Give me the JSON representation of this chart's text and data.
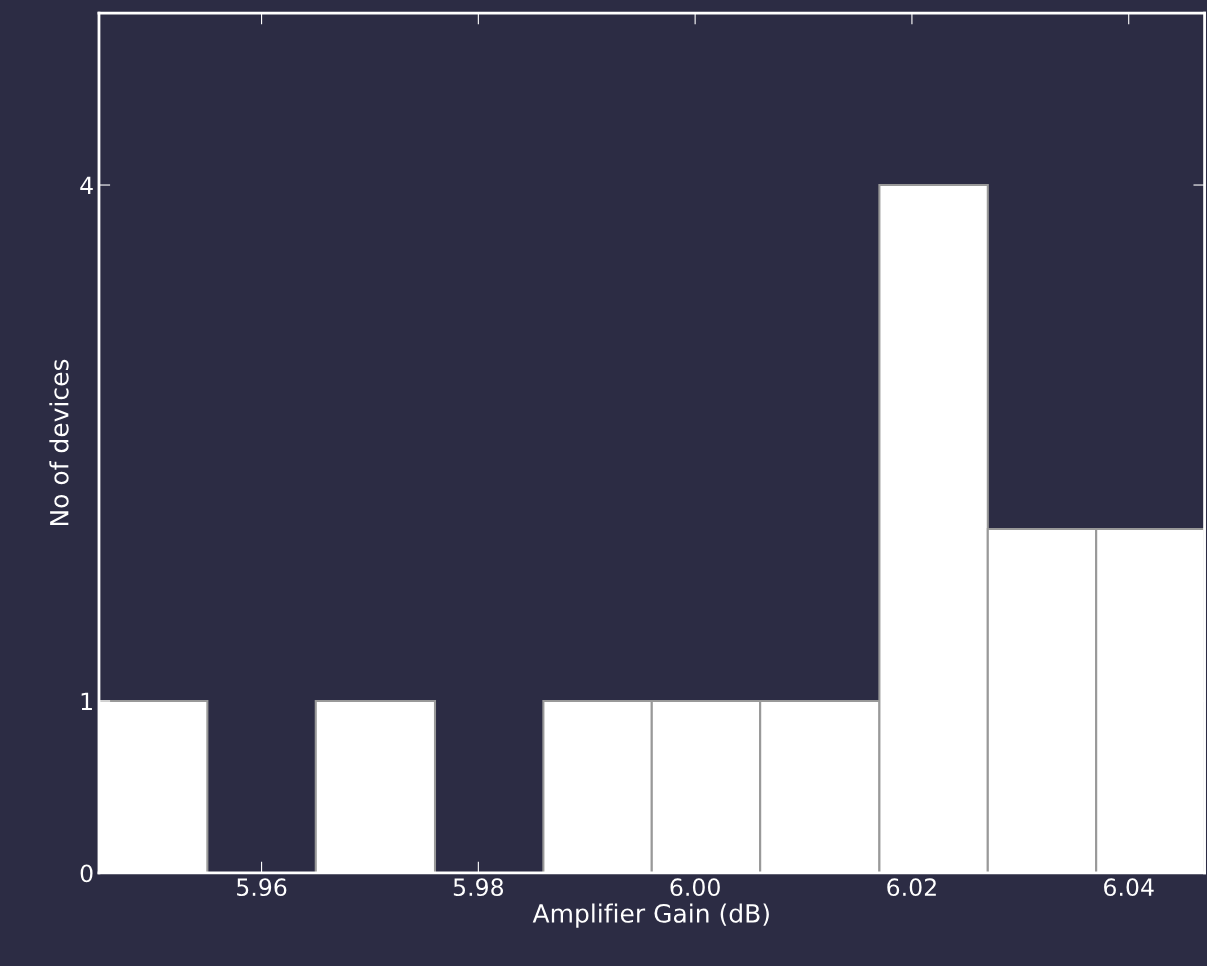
{
  "chart_data": {
    "type": "histogram",
    "xlabel": "Amplifier Gain (dB)",
    "ylabel": "No of devices",
    "bins": [
      5.945,
      5.955,
      5.965,
      5.976,
      5.986,
      5.996,
      6.006,
      6.017,
      6.027,
      6.037,
      6.047
    ],
    "values": [
      1,
      0,
      1,
      0,
      1,
      1,
      1,
      4,
      2,
      2
    ],
    "color": "#ffffff",
    "xlim": [
      5.945,
      6.047
    ],
    "ylim": [
      0,
      5
    ],
    "xticks": [
      {
        "value": 5.96,
        "label": "5.96"
      },
      {
        "value": 5.98,
        "label": "5.98"
      },
      {
        "value": 6.0,
        "label": "6.00"
      },
      {
        "value": 6.02,
        "label": "6.02"
      },
      {
        "value": 6.04,
        "label": "6.04"
      }
    ],
    "yticks": [
      0,
      1,
      4
    ],
    "grid": false
  }
}
